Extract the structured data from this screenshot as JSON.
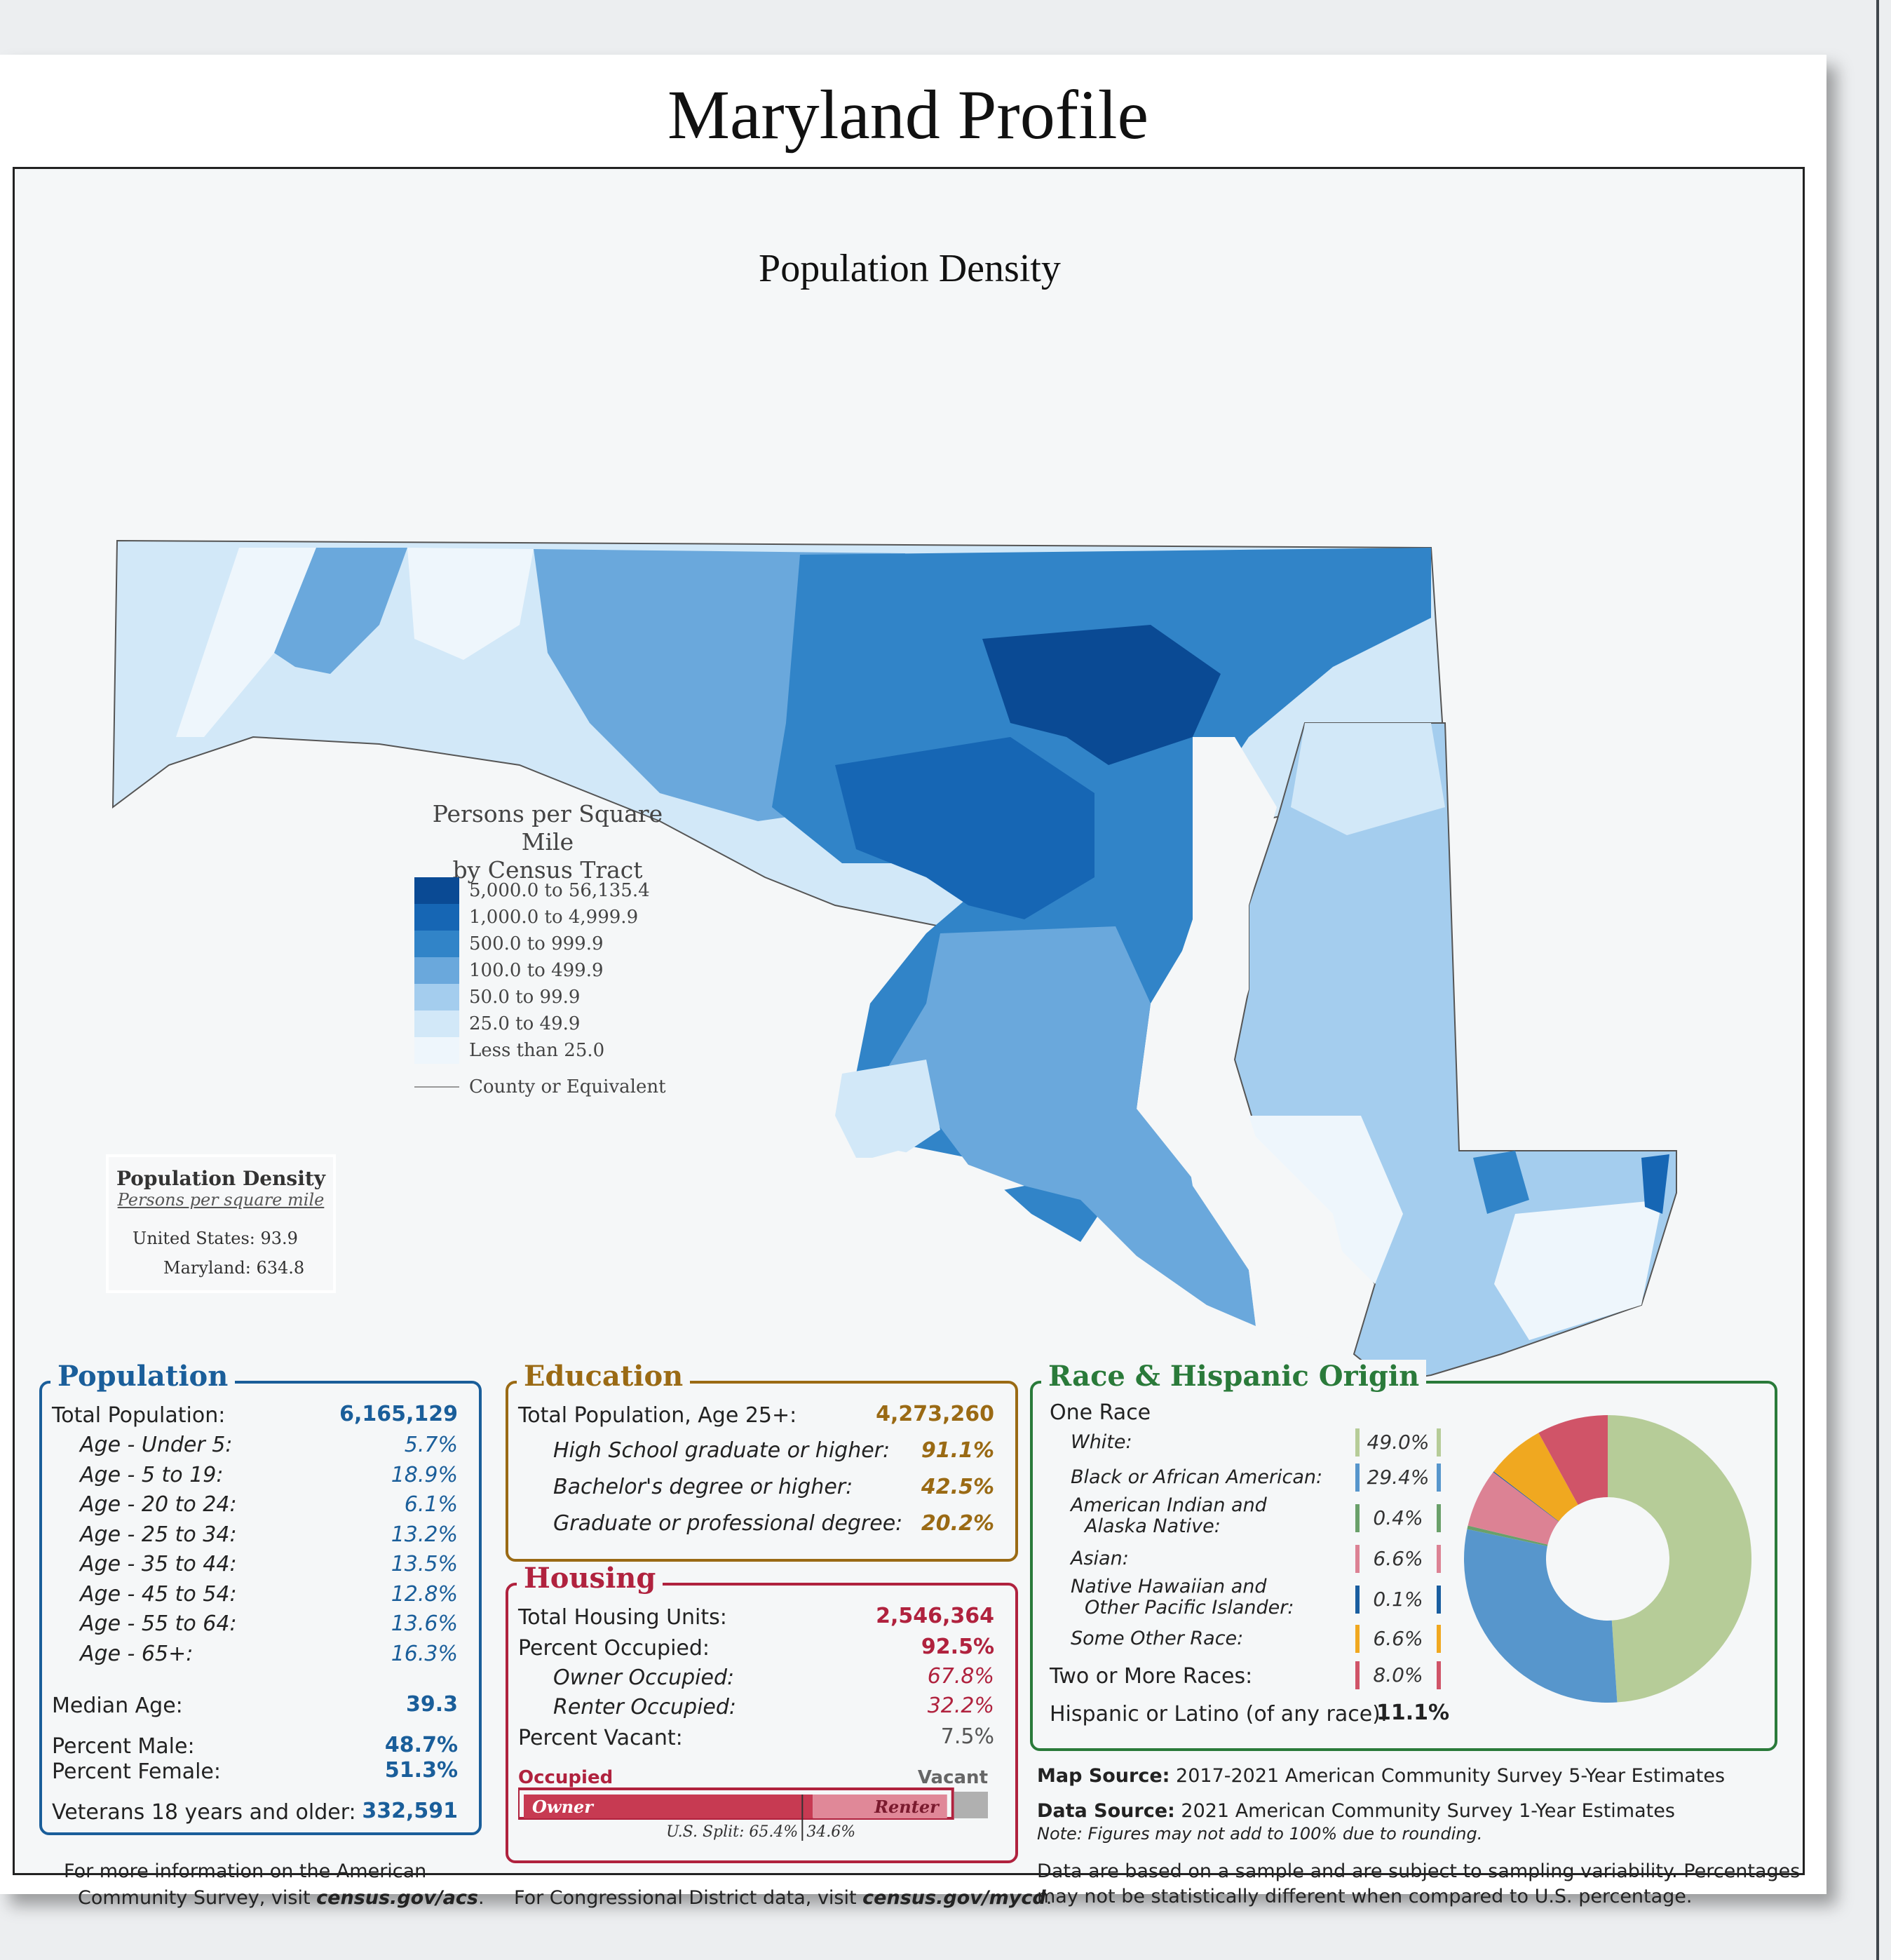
{
  "title": "Maryland Profile",
  "map": {
    "subtitle": "Population Density",
    "legend": {
      "title_line1": "Persons per Square Mile",
      "title_line2": "by Census Tract",
      "classes": [
        {
          "label": "5,000.0 to 56,135.4",
          "color": "#0a4a94"
        },
        {
          "label": "1,000.0 to 4,999.9",
          "color": "#1666b4"
        },
        {
          "label": "500.0 to 999.9",
          "color": "#3184c8"
        },
        {
          "label": "100.0 to 499.9",
          "color": "#6aa8dc"
        },
        {
          "label": "50.0 to 99.9",
          "color": "#a4cdee"
        },
        {
          "label": "25.0 to 49.9",
          "color": "#d2e8f8"
        },
        {
          "label": "Less than 25.0",
          "color": "#eef6fc"
        }
      ],
      "county_label": "County or Equivalent"
    },
    "density_box": {
      "title": "Population Density",
      "subtitle": "Persons per square mile",
      "us_label": "United States:",
      "us_value": "93.9",
      "md_label": "Maryland:",
      "md_value": "634.8"
    }
  },
  "population": {
    "title": "Population",
    "color": "#1a5e9a",
    "total_label": "Total Population:",
    "total_value": "6,165,129",
    "ages": [
      {
        "label": "Age - Under 5:",
        "value": "5.7%"
      },
      {
        "label": "Age - 5 to 19:",
        "value": "18.9%"
      },
      {
        "label": "Age - 20 to 24:",
        "value": "6.1%"
      },
      {
        "label": "Age - 25 to 34:",
        "value": "13.2%"
      },
      {
        "label": "Age - 35 to 44:",
        "value": "13.5%"
      },
      {
        "label": "Age - 45 to 54:",
        "value": "12.8%"
      },
      {
        "label": "Age - 55 to 64:",
        "value": "13.6%"
      },
      {
        "label": "Age - 65+:",
        "value": "16.3%"
      }
    ],
    "median_label": "Median Age:",
    "median_value": "39.3",
    "male_label": "Percent Male:",
    "male_value": "48.7%",
    "female_label": "Percent Female:",
    "female_value": "51.3%",
    "veterans_label": "Veterans 18 years and older:",
    "veterans_value": "332,591"
  },
  "education": {
    "title": "Education",
    "color": "#9a6a14",
    "total_label": "Total Population, Age 25+:",
    "total_value": "4,273,260",
    "rows": [
      {
        "label": "High School  graduate or higher:",
        "value": "91.1%"
      },
      {
        "label": "Bachelor's degree or higher:",
        "value": "42.5%"
      },
      {
        "label": "Graduate or professional degree:",
        "value": "20.2%"
      }
    ]
  },
  "housing": {
    "title": "Housing",
    "color": "#b0223e",
    "units_label": "Total Housing Units:",
    "units_value": "2,546,364",
    "occupied_label": "Percent Occupied:",
    "occupied_value": "92.5%",
    "owner_label": "Owner Occupied:",
    "owner_value": "67.8%",
    "renter_label": "Renter Occupied:",
    "renter_value": "32.2%",
    "vacant_label": "Percent Vacant:",
    "vacant_value": "7.5%",
    "bar": {
      "occupied_label": "Occupied",
      "vacant_label": "Vacant",
      "owner_label": "Owner",
      "renter_label": "Renter",
      "occupied_pct": 92.5,
      "owner_pct": 67.8,
      "us_split_label": "U.S. Split: 65.4%",
      "us_split_right": "34.6%",
      "us_owner_pct": 65.4
    }
  },
  "race": {
    "title": "Race & Hispanic Origin",
    "color": "#2a7a3a",
    "one_race_label": "One Race",
    "items": [
      {
        "label": "White:",
        "value": "49.0%",
        "color": "#b6cc98"
      },
      {
        "label": "Black or African American:",
        "value": "29.4%",
        "color": "#5796cc"
      },
      {
        "label": "American Indian and",
        "label2": "Alaska Native:",
        "value": "0.4%",
        "color": "#6aa06a"
      },
      {
        "label": "Asian:",
        "value": "6.6%",
        "color": "#dc8294"
      },
      {
        "label": "Native Hawaiian and",
        "label2": "Other Pacific Islander:",
        "value": "0.1%",
        "color": "#1a5ea0"
      },
      {
        "label": "Some Other Race:",
        "value": "6.6%",
        "color": "#f0a820"
      },
      {
        "label": "Two or More Races:",
        "value": "8.0%",
        "color": "#d05468"
      }
    ],
    "pie_values": [
      49.0,
      29.4,
      0.4,
      6.6,
      0.1,
      6.6,
      8.0
    ],
    "hispanic_label": "Hispanic or Latino (of any race):",
    "hispanic_value": "11.1%"
  },
  "footer": {
    "acs_line1": "For more information on the American",
    "acs_line2": "Community Survey, visit ",
    "acs_link": "census.gov/acs",
    "acs_end": ".",
    "cd_text": "For Congressional District data, visit ",
    "cd_link": "census.gov/mycd",
    "cd_end": ".",
    "map_source_label": "Map Source:",
    "map_source_text": " 2017-2021 American Community Survey 5-Year Estimates",
    "data_source_label": "Data Source:",
    "data_source_text": " 2021 American Community Survey 1-Year Estimates",
    "note": "Note: Figures may not add to 100% due to rounding.",
    "disclaimer1": "Data are based on a sample and are subject to sampling variability. Percentages",
    "disclaimer2": "may not be statistically different when compared to U.S. percentage."
  }
}
